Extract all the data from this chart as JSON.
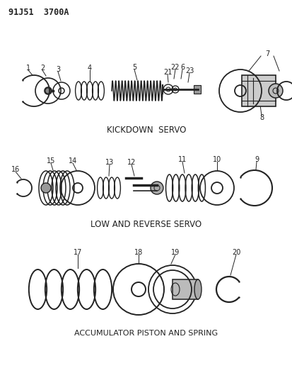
{
  "title_code": "91J51  3700A",
  "background_color": "#ffffff",
  "text_color": "#222222",
  "section1_label": "KICKDOWN  SERVO",
  "section2_label": "LOW AND REVERSE SERVO",
  "section3_label": "ACCUMULATOR PISTON AND SPRING",
  "figsize": [
    4.14,
    5.33
  ],
  "dpi": 100
}
